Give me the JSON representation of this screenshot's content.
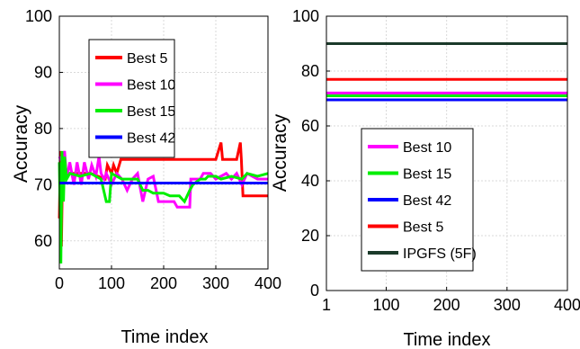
{
  "chart_data": [
    {
      "type": "line",
      "xlabel": "Time index",
      "ylabel": "Accuracy",
      "xlim": [
        0,
        400
      ],
      "ylim": [
        55,
        100
      ],
      "xticks": [
        "0",
        "100",
        "200",
        "300",
        "400"
      ],
      "yticks": [
        "60",
        "70",
        "80",
        "90",
        "100"
      ],
      "grid": true,
      "legend_position": "top-center",
      "series": [
        {
          "name": "Best 5",
          "color": "#ff0000",
          "points": [
            [
              0,
              64
            ],
            [
              2,
              76
            ],
            [
              4,
              59
            ],
            [
              6,
              72
            ],
            [
              10,
              72
            ],
            [
              60,
              72
            ],
            [
              88,
              71
            ],
            [
              92,
              73.5
            ],
            [
              100,
              72
            ],
            [
              104,
              73.5
            ],
            [
              110,
              72
            ],
            [
              118,
              74.5
            ],
            [
              300,
              74.5
            ],
            [
              310,
              77.5
            ],
            [
              313,
              74.5
            ],
            [
              340,
              74.5
            ],
            [
              347,
              77.5
            ],
            [
              349,
              74.5
            ],
            [
              352,
              68
            ],
            [
              400,
              68
            ]
          ]
        },
        {
          "name": "Best 10",
          "color": "#ff00ff",
          "points": [
            [
              0,
              75
            ],
            [
              6,
              74
            ],
            [
              10,
              76
            ],
            [
              14,
              71
            ],
            [
              20,
              74
            ],
            [
              28,
              70
            ],
            [
              34,
              74
            ],
            [
              42,
              70
            ],
            [
              48,
              74
            ],
            [
              56,
              71
            ],
            [
              62,
              73.5
            ],
            [
              70,
              71.5
            ],
            [
              76,
              75
            ],
            [
              80,
              72
            ],
            [
              86,
              71
            ],
            [
              90,
              72
            ],
            [
              100,
              70
            ],
            [
              110,
              72
            ],
            [
              120,
              71
            ],
            [
              130,
              69
            ],
            [
              140,
              71
            ],
            [
              150,
              72
            ],
            [
              160,
              67
            ],
            [
              170,
              71
            ],
            [
              180,
              71.5
            ],
            [
              190,
              67
            ],
            [
              220,
              67
            ],
            [
              226,
              66
            ],
            [
              250,
              66
            ],
            [
              252,
              71
            ],
            [
              270,
              71
            ],
            [
              276,
              72
            ],
            [
              290,
              72
            ],
            [
              300,
              71
            ],
            [
              320,
              72
            ],
            [
              330,
              71
            ],
            [
              340,
              72
            ],
            [
              350,
              70
            ],
            [
              360,
              72
            ],
            [
              380,
              71
            ],
            [
              400,
              71
            ]
          ]
        },
        {
          "name": "Best 15",
          "color": "#00ee00",
          "points": [
            [
              0,
              74
            ],
            [
              3,
              56
            ],
            [
              5,
              76
            ],
            [
              8,
              67
            ],
            [
              10,
              75
            ],
            [
              14,
              71
            ],
            [
              20,
              72
            ],
            [
              40,
              71.5
            ],
            [
              60,
              72
            ],
            [
              80,
              71
            ],
            [
              90,
              67
            ],
            [
              96,
              67
            ],
            [
              100,
              72
            ],
            [
              120,
              71
            ],
            [
              130,
              71
            ],
            [
              140,
              71
            ],
            [
              150,
              71
            ],
            [
              160,
              69
            ],
            [
              170,
              69
            ],
            [
              180,
              68.5
            ],
            [
              200,
              68.5
            ],
            [
              212,
              68
            ],
            [
              230,
              68
            ],
            [
              240,
              67
            ],
            [
              250,
              69
            ],
            [
              256,
              70
            ],
            [
              270,
              71
            ],
            [
              280,
              71
            ],
            [
              285,
              71.5
            ],
            [
              300,
              71.5
            ],
            [
              310,
              71
            ],
            [
              330,
              71.5
            ],
            [
              350,
              71
            ],
            [
              360,
              72
            ],
            [
              380,
              71.5
            ],
            [
              400,
              72
            ]
          ]
        },
        {
          "name": "Best 42",
          "color": "#0000ff",
          "points": [
            [
              0,
              70.3
            ],
            [
              400,
              70.3
            ]
          ]
        }
      ]
    },
    {
      "type": "line",
      "xlabel": "Time index",
      "ylabel": "Accuracy",
      "xlim": [
        1,
        400
      ],
      "ylim": [
        0,
        100
      ],
      "xticks": [
        "1",
        "100",
        "200",
        "300",
        "400"
      ],
      "yticks": [
        "0",
        "20",
        "40",
        "60",
        "80",
        "100"
      ],
      "grid": true,
      "legend_position": "bottom-center",
      "series": [
        {
          "name": "Best 10",
          "color": "#ff00ff",
          "points": [
            [
              1,
              72
            ],
            [
              400,
              72
            ]
          ]
        },
        {
          "name": "Best 15",
          "color": "#00ee00",
          "points": [
            [
              1,
              71
            ],
            [
              400,
              71
            ]
          ]
        },
        {
          "name": "Best 42",
          "color": "#0000ff",
          "points": [
            [
              1,
              69.5
            ],
            [
              400,
              69.5
            ]
          ]
        },
        {
          "name": "Best 5",
          "color": "#ff0000",
          "points": [
            [
              1,
              77
            ],
            [
              400,
              77
            ]
          ]
        },
        {
          "name": "IPGFS (5F)",
          "color": "#1b3a2a",
          "points": [
            [
              1,
              90
            ],
            [
              400,
              90
            ]
          ]
        }
      ]
    }
  ]
}
